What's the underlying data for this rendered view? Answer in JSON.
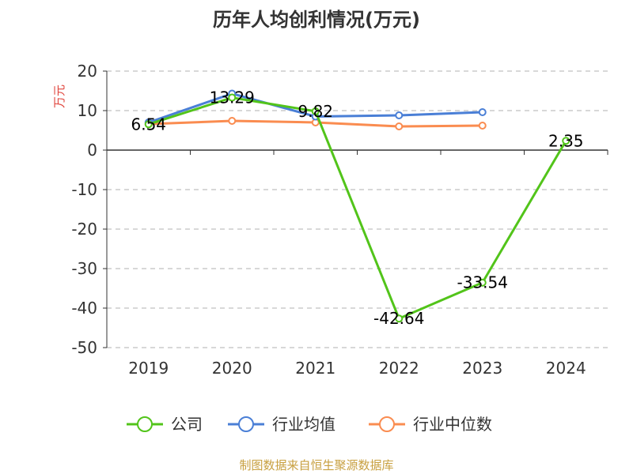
{
  "chart_data": {
    "type": "line",
    "title": "历年人均创利情况(万元)",
    "ylabel": "万元",
    "categories": [
      "2019",
      "2020",
      "2021",
      "2022",
      "2023",
      "2024"
    ],
    "ylim": [
      -50,
      20
    ],
    "yticks": [
      20,
      10,
      0,
      -10,
      -20,
      -30,
      -40,
      -50
    ],
    "grid": true,
    "legend_position": "bottom",
    "series": [
      {
        "name": "公司",
        "values": [
          6.54,
          13.29,
          9.82,
          -42.64,
          -33.54,
          2.35
        ],
        "color": "#52c41a"
      },
      {
        "name": "行业均值",
        "values": [
          7.0,
          14.3,
          8.5,
          8.8,
          9.6,
          null
        ],
        "color": "#4a7fd6"
      },
      {
        "name": "行业中位数",
        "values": [
          6.6,
          7.4,
          7.0,
          6.0,
          6.2,
          null
        ],
        "color": "#fa8c50"
      }
    ],
    "data_labels": [
      {
        "series": 0,
        "index": 0,
        "text": "6.54"
      },
      {
        "series": 0,
        "index": 1,
        "text": "13.29"
      },
      {
        "series": 0,
        "index": 2,
        "text": "9.82"
      },
      {
        "series": 0,
        "index": 3,
        "text": "-42.64"
      },
      {
        "series": 0,
        "index": 4,
        "text": "-33.54"
      },
      {
        "series": 0,
        "index": 5,
        "text": "2.35"
      }
    ]
  },
  "footer": {
    "source": "制图数据来自恒生聚源数据库"
  },
  "colors": {
    "ylabel": "#e0443c",
    "source": "#c8a040",
    "grid": "#cccccc",
    "axis": "#333333"
  }
}
